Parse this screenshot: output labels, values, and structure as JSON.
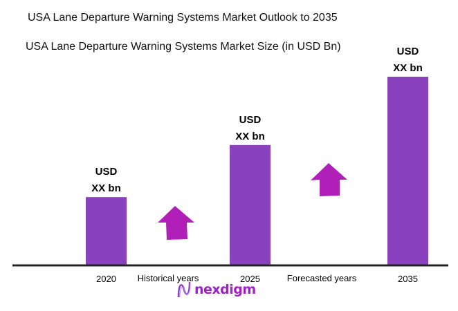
{
  "title": "USA Lane Departure Warning Systems Market Outlook to 2035",
  "chart_data": {
    "type": "bar",
    "title": "USA Lane Departure Warning Systems Market Size (in USD Bn)",
    "categories": [
      "2020",
      "2025",
      "2035"
    ],
    "values": [
      1.0,
      1.77,
      2.78
    ],
    "data_labels": [
      [
        "USD",
        "XX bn"
      ],
      [
        "USD",
        "XX bn"
      ],
      [
        "USD",
        "XX bn"
      ]
    ],
    "annotations": [
      "Historical years",
      "Forecasted years"
    ],
    "ylim": [
      0,
      2.78
    ],
    "grid": false,
    "legend": "none",
    "colors": {
      "bar": "#8a41bd",
      "arrow": "#b020b8",
      "axis": "#222222"
    }
  },
  "logo": {
    "text": "nexdigm"
  }
}
